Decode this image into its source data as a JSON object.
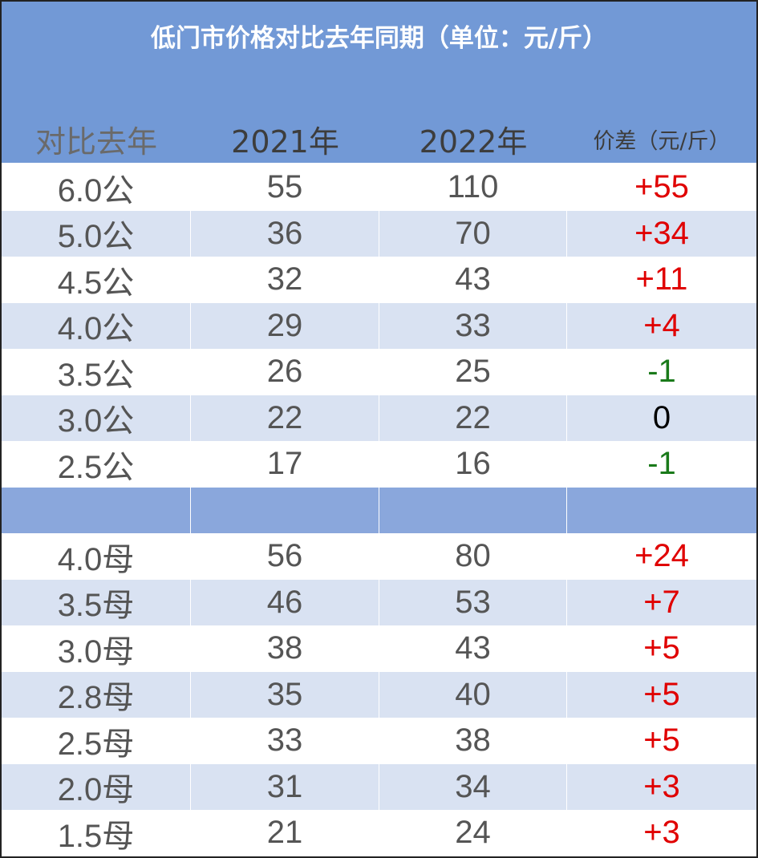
{
  "title": "低门市价格对比去年同期（单位：元/斤）",
  "header": {
    "compare": "对比去年",
    "y2021": "2021年",
    "y2022": "2022年",
    "diff": "价差（元/斤）"
  },
  "colors": {
    "header_bg": "#7299d6",
    "row_alt_bg": "#d9e2f2",
    "separator_bg": "#8aa7dc",
    "positive": "#e00000",
    "negative": "#1a7a1a",
    "zero": "#000000"
  },
  "rows_male": [
    {
      "grade": "6.0公",
      "y2021": "55",
      "y2022": "110",
      "diff": "+55"
    },
    {
      "grade": "5.0公",
      "y2021": "36",
      "y2022": "70",
      "diff": "+34"
    },
    {
      "grade": "4.5公",
      "y2021": "32",
      "y2022": "43",
      "diff": "+11"
    },
    {
      "grade": "4.0公",
      "y2021": "29",
      "y2022": "33",
      "diff": "+4"
    },
    {
      "grade": "3.5公",
      "y2021": "26",
      "y2022": "25",
      "diff": "-1"
    },
    {
      "grade": "3.0公",
      "y2021": "22",
      "y2022": "22",
      "diff": "0"
    },
    {
      "grade": "2.5公",
      "y2021": "17",
      "y2022": "16",
      "diff": "-1"
    }
  ],
  "rows_female": [
    {
      "grade": "4.0母",
      "y2021": "56",
      "y2022": "80",
      "diff": "+24"
    },
    {
      "grade": "3.5母",
      "y2021": "46",
      "y2022": "53",
      "diff": "+7"
    },
    {
      "grade": "3.0母",
      "y2021": "38",
      "y2022": "43",
      "diff": "+5"
    },
    {
      "grade": "2.8母",
      "y2021": "35",
      "y2022": "40",
      "diff": "+5"
    },
    {
      "grade": "2.5母",
      "y2021": "33",
      "y2022": "38",
      "diff": "+5"
    },
    {
      "grade": "2.0母",
      "y2021": "31",
      "y2022": "34",
      "diff": "+3"
    },
    {
      "grade": "1.5母",
      "y2021": "21",
      "y2022": "24",
      "diff": "+3"
    }
  ]
}
